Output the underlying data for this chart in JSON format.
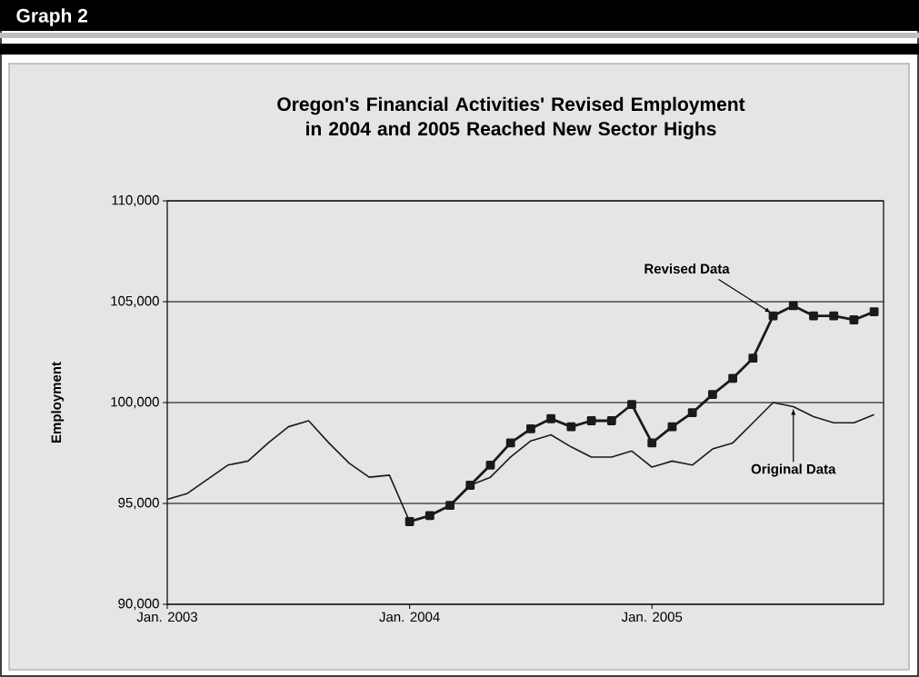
{
  "chart_data": {
    "type": "line",
    "title": "Oregon's Financial Activities' Revised Employment\nin 2004 and 2005 Reached New Sector Highs",
    "ylabel": "Employment",
    "annotations": [
      "Graph 2",
      {
        "text": "Revised Data",
        "x": "2005-07",
        "y": 104300
      },
      {
        "text": "Original Data",
        "x": "2005-08",
        "y": 99800
      }
    ],
    "x": [
      "2003-01",
      "2003-02",
      "2003-03",
      "2003-04",
      "2003-05",
      "2003-06",
      "2003-07",
      "2003-08",
      "2003-09",
      "2003-10",
      "2003-11",
      "2003-12",
      "2004-01",
      "2004-02",
      "2004-03",
      "2004-04",
      "2004-05",
      "2004-06",
      "2004-07",
      "2004-08",
      "2004-09",
      "2004-10",
      "2004-11",
      "2004-12",
      "2005-01",
      "2005-02",
      "2005-03",
      "2005-04",
      "2005-05",
      "2005-06",
      "2005-07",
      "2005-08",
      "2005-09",
      "2005-10",
      "2005-11",
      "2005-12"
    ],
    "series": [
      {
        "color": "#1a1a1a",
        "marker": "none",
        "values": [
          95200,
          95500,
          96200,
          96900,
          97100,
          98000,
          98800,
          99100,
          98000,
          97000,
          96300,
          96400,
          94100,
          94400,
          94900,
          95900,
          96300,
          97300,
          98100,
          98400,
          97800,
          97300,
          97300,
          97600,
          96800,
          97100,
          96900,
          97700,
          98000,
          99000,
          100000,
          99800,
          99300,
          99000,
          99000,
          99400
        ]
      },
      {
        "color": "#1a1a1a",
        "marker": "square",
        "x": [
          "2004-01",
          "2004-02",
          "2004-03",
          "2004-04",
          "2004-05",
          "2004-06",
          "2004-07",
          "2004-08",
          "2004-09",
          "2004-10",
          "2004-11",
          "2004-12",
          "2005-01",
          "2005-02",
          "2005-03",
          "2005-04",
          "2005-05",
          "2005-06",
          "2005-07",
          "2005-08",
          "2005-09",
          "2005-10",
          "2005-11",
          "2005-12"
        ],
        "values": [
          94100,
          94400,
          94900,
          95900,
          96900,
          98000,
          98700,
          99200,
          98800,
          99100,
          99100,
          99900,
          98000,
          98800,
          99500,
          100400,
          101200,
          102200,
          104300,
          104800,
          104300,
          104300,
          104100,
          104500
        ]
      }
    ],
    "xlim": [
      "2003-01-01",
      "2005-12-15"
    ],
    "xticks": [
      {
        "value": "2003-01",
        "label": "Jan. 2003"
      },
      {
        "value": "2004-01",
        "label": "Jan. 2004"
      },
      {
        "value": "2005-01",
        "label": "Jan. 2005"
      }
    ],
    "ylim": [
      90000,
      110000
    ],
    "yticks": [
      {
        "value": 90000,
        "label": "90,000"
      },
      {
        "value": 95000,
        "label": "95,000"
      },
      {
        "value": 100000,
        "label": "100,000"
      },
      {
        "value": 105000,
        "label": "105,000"
      },
      {
        "value": 110000,
        "label": "110,000"
      }
    ],
    "grid": "y"
  }
}
